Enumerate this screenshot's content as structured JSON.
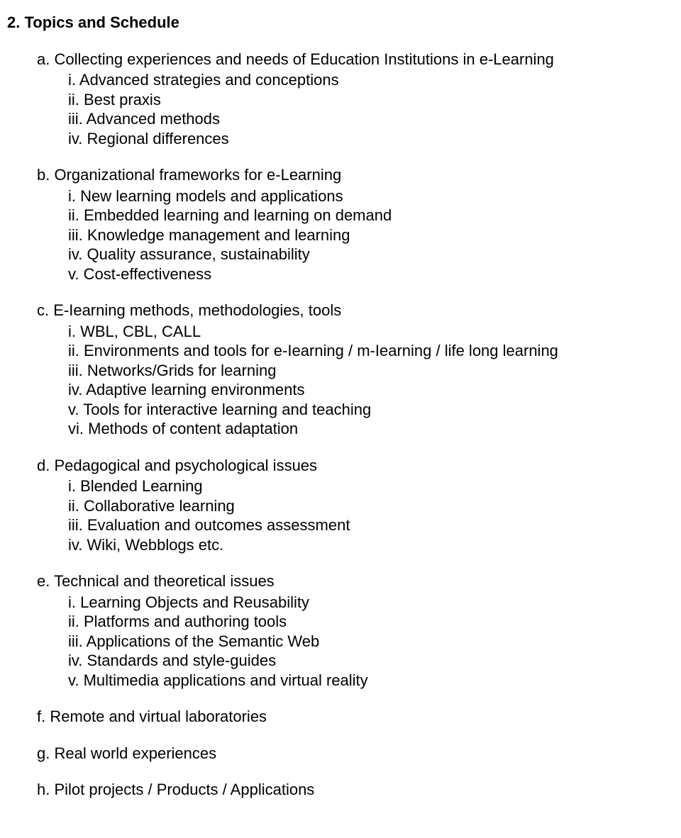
{
  "heading": "2. Topics and Schedule",
  "sections": [
    {
      "letter": "a",
      "title": "Collecting experiences and needs of Education Institutions in e-Learning",
      "items": [
        "i. Advanced strategies and conceptions",
        "ii. Best praxis",
        "iii. Advanced methods",
        "iv. Regional differences"
      ]
    },
    {
      "letter": "b",
      "title": "Organizational frameworks for e-Learning",
      "items": [
        "i. New learning models and applications",
        "ii. Embedded learning and learning on demand",
        "iii. Knowledge management and learning",
        "iv. Quality assurance, sustainability",
        "v. Cost-effectiveness"
      ]
    },
    {
      "letter": "c",
      "title": "E-Iearning methods, methodologies, tools",
      "items": [
        "i. WBL, CBL, CALL",
        "ii. Environments and tools for e-Iearning / m-Iearning / life long learning",
        "iii. Networks/Grids for learning",
        "iv. Adaptive learning environments",
        "v. Tools for interactive learning and teaching",
        "vi. Methods of content adaptation"
      ]
    },
    {
      "letter": "d",
      "title": "Pedagogical and psychological issues",
      "items": [
        "i. Blended Learning",
        "ii. Collaborative learning",
        "iii. Evaluation and outcomes assessment",
        "iv. Wiki, Webblogs etc."
      ]
    },
    {
      "letter": "e",
      "title": "Technical and theoretical issues",
      "items": [
        "i. Learning Objects and Reusability",
        "ii. Platforms and authoring tools",
        "iii. Applications of the Semantic Web",
        "iv. Standards and style-guides",
        "v. Multimedia applications and virtual reality"
      ]
    },
    {
      "letter": "f",
      "title": "Remote and virtual laboratories",
      "items": []
    },
    {
      "letter": "g",
      "title": "Real world experiences",
      "items": []
    },
    {
      "letter": "h",
      "title": "Pilot projects / Products / Applications",
      "items": []
    }
  ]
}
